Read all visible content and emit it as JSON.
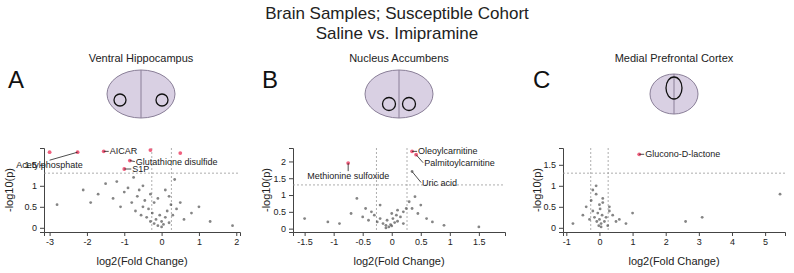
{
  "header": {
    "title": "Brain Samples; Susceptible Cohort",
    "subtitle": "Saline vs. Imipramine"
  },
  "chart_data": [
    {
      "type": "scatter",
      "label": "A",
      "title": "Ventral Hippocampus",
      "xlabel": "log2(Fold Change)",
      "ylabel": "-log10(p)",
      "xlim": [
        -3.15,
        2.1
      ],
      "xticks": [
        -3,
        -2,
        -1,
        0,
        1,
        2
      ],
      "ylim": [
        -0.1,
        1.9
      ],
      "yticks": [
        0,
        0.5,
        1,
        1.5
      ],
      "thresholds": {
        "x": [
          -0.263,
          0.263
        ],
        "y": 1.301
      },
      "series": [
        {
          "color": "#333333",
          "marker": "circle",
          "x": [
            -2.8,
            -2.1,
            -1.9,
            -1.7,
            -1.5,
            -1.3,
            -1.2,
            -1.1,
            -1.0,
            -0.9,
            -0.8,
            -0.75,
            -0.7,
            -0.65,
            -0.6,
            -0.55,
            -0.5,
            -0.45,
            -0.4,
            -0.35,
            -0.3,
            -0.25,
            -0.2,
            -0.15,
            -0.1,
            -0.05,
            0,
            0.05,
            0.1,
            0.15,
            0.2,
            0.25,
            0.3,
            0.4,
            0.5,
            0.6,
            0.8,
            1.0,
            1.3,
            1.9,
            -0.2,
            -0.1,
            0.0,
            0.1,
            -0.3,
            -0.5,
            0.2,
            0.35
          ],
          "values": [
            0.55,
            0.9,
            0.6,
            0.8,
            1.05,
            0.7,
            1.1,
            0.5,
            0.85,
            0.95,
            0.6,
            1.2,
            0.4,
            0.75,
            0.9,
            0.3,
            0.5,
            0.65,
            0.25,
            0.45,
            0.15,
            0.35,
            0.1,
            0.2,
            0.05,
            0.3,
            0.15,
            0.08,
            0.25,
            0.4,
            0.12,
            0.55,
            0.3,
            0.45,
            0.6,
            0.2,
            0.35,
            0.5,
            0.15,
            0.05,
            0.6,
            0.7,
            0.02,
            0.9,
            0.8,
            1.0,
            0.75,
            1.15
          ]
        },
        {
          "color": "#f0607e",
          "marker": "circle",
          "x": [
            -3.0,
            -2.25,
            -1.55,
            -0.85,
            -1.0,
            -0.3,
            0.5
          ],
          "values": [
            1.8,
            1.8,
            1.82,
            1.6,
            1.4,
            1.85,
            1.78
          ]
        }
      ],
      "annotations": [
        {
          "text": "Acetylphosphate",
          "x": -2.25,
          "y": 1.8
        },
        {
          "text": "AICAR",
          "x": -1.55,
          "y": 1.82
        },
        {
          "text": "Glutathione disulfide",
          "x": -0.85,
          "y": 1.6
        },
        {
          "text": "S1P",
          "x": -1.0,
          "y": 1.4
        }
      ]
    },
    {
      "type": "scatter",
      "label": "B",
      "title": "Nucleus Accumbens",
      "xlabel": "log2(Fold Change)",
      "ylabel": "-log10(p)",
      "xlim": [
        -1.7,
        1.95
      ],
      "xticks": [
        -1.5,
        -1,
        -0.5,
        0,
        0.5,
        1,
        1.5
      ],
      "ylim": [
        -0.1,
        2.4
      ],
      "yticks": [
        0,
        0.5,
        1,
        1.5,
        2
      ],
      "thresholds": {
        "x": [
          -0.263,
          0.263
        ],
        "y": 1.301
      },
      "series": [
        {
          "color": "#333333",
          "marker": "circle",
          "x": [
            -1.5,
            -1.1,
            -0.9,
            -0.7,
            -0.6,
            -0.5,
            -0.45,
            -0.4,
            -0.35,
            -0.3,
            -0.25,
            -0.2,
            -0.15,
            -0.1,
            -0.08,
            -0.05,
            -0.02,
            0,
            0.02,
            0.05,
            0.08,
            0.1,
            0.15,
            0.2,
            0.25,
            0.3,
            0.35,
            0.4,
            0.45,
            0.5,
            0.6,
            0.7,
            0.9,
            1.5,
            0.35,
            -0.2,
            0.1,
            -0.1,
            0.0,
            0.2
          ],
          "values": [
            0.3,
            0.2,
            0.15,
            0.45,
            0.9,
            0.35,
            0.6,
            0.25,
            0.5,
            0.4,
            0.2,
            0.3,
            0.15,
            0.1,
            0.25,
            0.05,
            0.12,
            0.08,
            0.3,
            0.18,
            0.4,
            0.22,
            0.35,
            0.5,
            0.6,
            0.8,
            1.7,
            0.95,
            0.45,
            0.7,
            0.3,
            0.2,
            0.1,
            0.05,
            0.6,
            0.7,
            0.55,
            0.02,
            0.45,
            0.15
          ]
        },
        {
          "color": "#f0607e",
          "marker": "circle",
          "x": [
            -0.75,
            0.35,
            0.42
          ],
          "values": [
            1.95,
            2.3,
            2.2
          ]
        }
      ],
      "annotations": [
        {
          "text": "Methionine sulfoxide",
          "x": -0.75,
          "y": 1.95
        },
        {
          "text": "Oleoylcarnitine",
          "x": 0.35,
          "y": 2.3
        },
        {
          "text": "Palmitoylcarnitine",
          "x": 0.42,
          "y": 2.2
        },
        {
          "text": "Uric acid",
          "x": 0.35,
          "y": 1.7
        }
      ]
    },
    {
      "type": "scatter",
      "label": "C",
      "title": "Medial Prefrontal Cortex",
      "xlabel": "log2(Fold Change)",
      "ylabel": "-log10(p)",
      "xlim": [
        -1.1,
        5.6
      ],
      "xticks": [
        -1,
        0,
        1,
        2,
        3,
        4,
        5
      ],
      "ylim": [
        -0.1,
        1.9
      ],
      "yticks": [
        0,
        0.5,
        1,
        1.5
      ],
      "thresholds": {
        "x": [
          -0.263,
          0.263
        ],
        "y": 1.301
      },
      "series": [
        {
          "color": "#333333",
          "marker": "circle",
          "x": [
            -0.8,
            -0.5,
            -0.4,
            -0.3,
            -0.25,
            -0.2,
            -0.15,
            -0.1,
            -0.08,
            -0.05,
            -0.02,
            0,
            0.02,
            0.05,
            0.08,
            0.1,
            0.15,
            0.2,
            0.25,
            0.3,
            0.4,
            0.5,
            0.6,
            0.8,
            1.0,
            2.6,
            3.1,
            5.45,
            -0.1,
            0.0,
            0.1,
            -0.2,
            0.3,
            0.05
          ],
          "values": [
            0.1,
            0.3,
            0.5,
            0.2,
            0.65,
            0.4,
            0.25,
            0.8,
            0.15,
            0.35,
            0.05,
            0.2,
            0.45,
            0.1,
            0.3,
            0.6,
            0.15,
            0.25,
            0.05,
            0.4,
            0.3,
            0.15,
            0.2,
            0.1,
            0.35,
            0.15,
            0.25,
            0.8,
            1.0,
            0.55,
            0.7,
            0.9,
            0.5,
            0.02
          ]
        },
        {
          "color": "#f0607e",
          "marker": "circle",
          "x": [
            1.2
          ],
          "values": [
            1.75
          ]
        }
      ],
      "annotations": [
        {
          "text": "Glucono-D-lactone",
          "x": 1.2,
          "y": 1.75
        }
      ]
    }
  ]
}
